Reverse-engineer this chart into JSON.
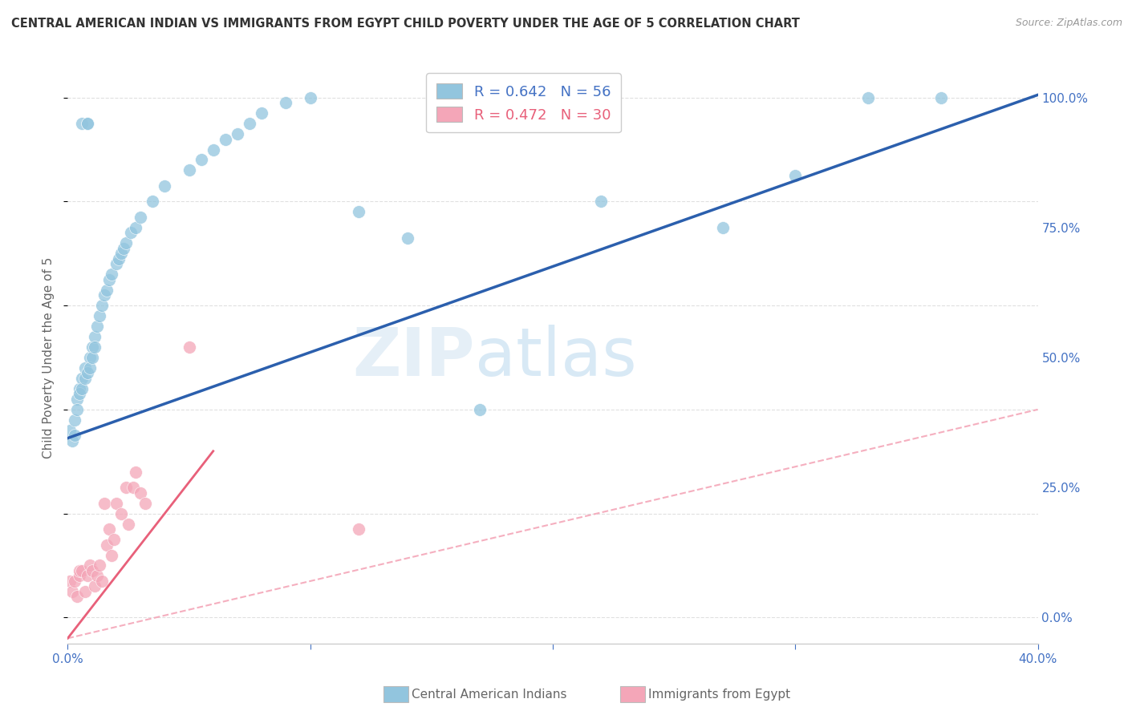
{
  "title": "CENTRAL AMERICAN INDIAN VS IMMIGRANTS FROM EGYPT CHILD POVERTY UNDER THE AGE OF 5 CORRELATION CHART",
  "source": "Source: ZipAtlas.com",
  "ylabel": "Child Poverty Under the Age of 5",
  "xlim": [
    0.0,
    0.4
  ],
  "ylim": [
    -0.05,
    1.05
  ],
  "blue_R": 0.642,
  "blue_N": 56,
  "pink_R": 0.472,
  "pink_N": 30,
  "blue_label": "Central American Indians",
  "pink_label": "Immigrants from Egypt",
  "blue_color": "#92c5de",
  "pink_color": "#f4a6b8",
  "blue_line_color": "#2b5fad",
  "pink_line_color": "#e8607a",
  "pink_dash_color": "#f4a6b8",
  "background_color": "#ffffff",
  "grid_color": "#dddddd",
  "axis_label_color": "#4472c4",
  "blue_x": [
    0.001,
    0.002,
    0.003,
    0.003,
    0.004,
    0.004,
    0.005,
    0.005,
    0.006,
    0.006,
    0.006,
    0.007,
    0.007,
    0.008,
    0.008,
    0.008,
    0.009,
    0.009,
    0.01,
    0.01,
    0.011,
    0.011,
    0.012,
    0.013,
    0.014,
    0.015,
    0.016,
    0.017,
    0.018,
    0.02,
    0.021,
    0.022,
    0.023,
    0.024,
    0.026,
    0.028,
    0.03,
    0.035,
    0.04,
    0.05,
    0.055,
    0.06,
    0.065,
    0.07,
    0.075,
    0.08,
    0.09,
    0.1,
    0.12,
    0.14,
    0.17,
    0.22,
    0.27,
    0.3,
    0.33,
    0.36
  ],
  "blue_y": [
    0.36,
    0.34,
    0.38,
    0.35,
    0.42,
    0.4,
    0.44,
    0.43,
    0.46,
    0.44,
    0.95,
    0.48,
    0.46,
    0.95,
    0.95,
    0.47,
    0.5,
    0.48,
    0.52,
    0.5,
    0.54,
    0.52,
    0.56,
    0.58,
    0.6,
    0.62,
    0.63,
    0.65,
    0.66,
    0.68,
    0.69,
    0.7,
    0.71,
    0.72,
    0.74,
    0.75,
    0.77,
    0.8,
    0.83,
    0.86,
    0.88,
    0.9,
    0.92,
    0.93,
    0.95,
    0.97,
    0.99,
    1.0,
    0.78,
    0.73,
    0.4,
    0.8,
    0.75,
    0.85,
    1.0,
    1.0
  ],
  "pink_x": [
    0.001,
    0.002,
    0.003,
    0.004,
    0.005,
    0.005,
    0.006,
    0.007,
    0.008,
    0.009,
    0.01,
    0.011,
    0.012,
    0.013,
    0.014,
    0.015,
    0.016,
    0.017,
    0.018,
    0.019,
    0.02,
    0.022,
    0.024,
    0.025,
    0.027,
    0.028,
    0.03,
    0.032,
    0.05,
    0.12
  ],
  "pink_y": [
    0.07,
    0.05,
    0.07,
    0.04,
    0.08,
    0.09,
    0.09,
    0.05,
    0.08,
    0.1,
    0.09,
    0.06,
    0.08,
    0.1,
    0.07,
    0.22,
    0.14,
    0.17,
    0.12,
    0.15,
    0.22,
    0.2,
    0.25,
    0.18,
    0.25,
    0.28,
    0.24,
    0.22,
    0.52,
    0.17
  ]
}
